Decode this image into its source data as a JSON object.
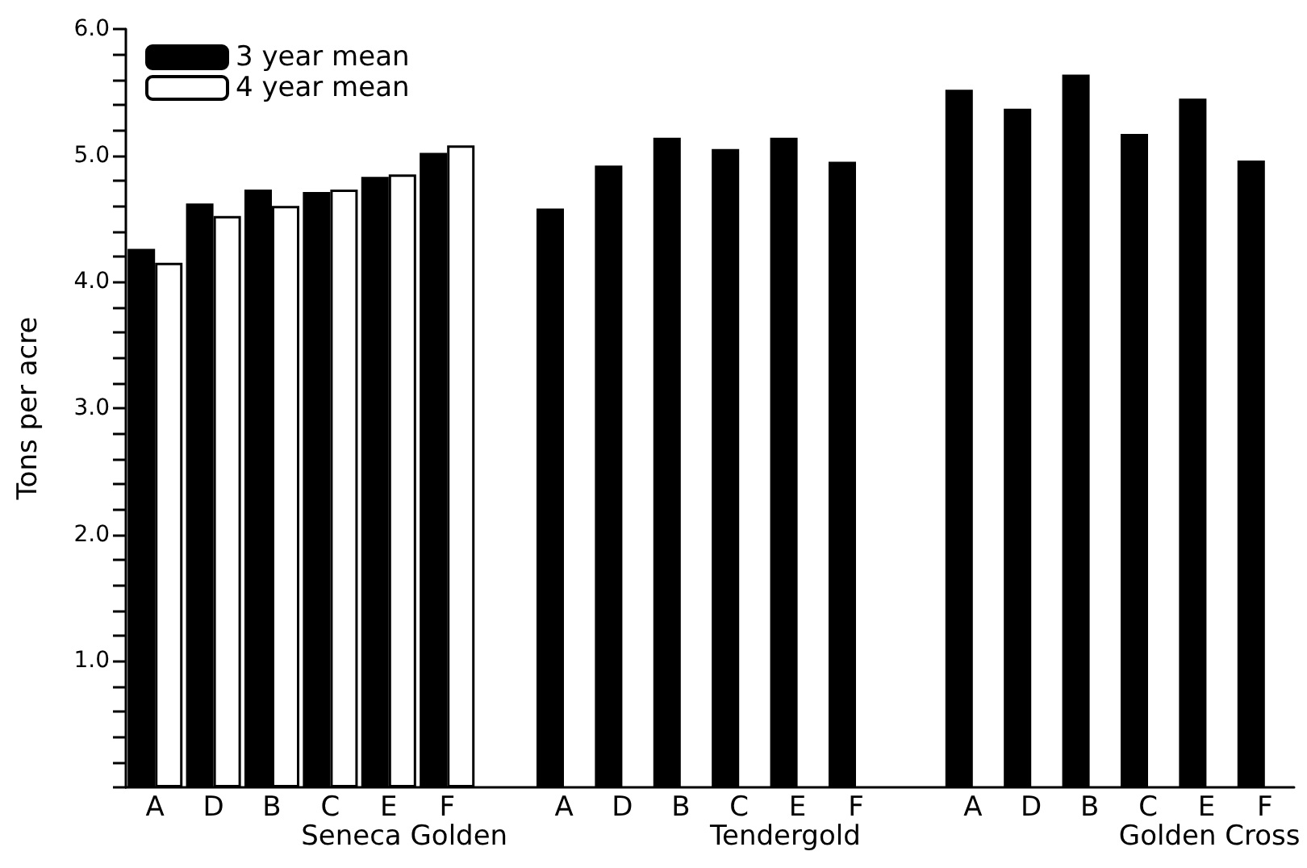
{
  "chart_data": {
    "type": "bar",
    "ylabel": "Tons per acre",
    "categories": [
      "A",
      "D",
      "B",
      "C",
      "E",
      "F",
      null,
      "A",
      "D",
      "B",
      "C",
      "E",
      "F",
      null,
      "A",
      "D",
      "B",
      "C",
      "E",
      "F"
    ],
    "series": [
      {
        "name": "3 year mean",
        "color": "#000000",
        "values": [
          4.26,
          4.62,
          4.73,
          4.71,
          4.83,
          5.02,
          null,
          4.58,
          4.92,
          5.14,
          5.05,
          5.14,
          4.95,
          null,
          5.52,
          5.37,
          5.64,
          5.17,
          5.45,
          4.96
        ]
      },
      {
        "name": "4 year mean",
        "color": "#ffffff",
        "values": [
          4.15,
          4.52,
          4.6,
          4.73,
          4.85,
          5.08,
          null,
          null,
          null,
          null,
          null,
          null,
          null,
          null,
          null,
          null,
          null,
          null,
          null,
          null
        ]
      }
    ],
    "annotations": [
      "Seneca Golden",
      "Tendergold",
      "Golden Cross"
    ],
    "ylim": [
      0,
      6
    ],
    "yticks": [
      {
        "value": 0,
        "label": null
      },
      {
        "value": 0.2,
        "label": null
      },
      {
        "value": 0.4,
        "label": null
      },
      {
        "value": 0.6,
        "label": null
      },
      {
        "value": 0.8,
        "label": null
      },
      {
        "value": 1,
        "label": "1.0"
      },
      {
        "value": 1.2,
        "label": null
      },
      {
        "value": 1.4,
        "label": null
      },
      {
        "value": 1.6,
        "label": null
      },
      {
        "value": 1.8,
        "label": null
      },
      {
        "value": 2,
        "label": "2.0"
      },
      {
        "value": 2.2,
        "label": null
      },
      {
        "value": 2.4,
        "label": null
      },
      {
        "value": 2.6,
        "label": null
      },
      {
        "value": 2.8,
        "label": null
      },
      {
        "value": 3,
        "label": "3.0"
      },
      {
        "value": 3.2,
        "label": null
      },
      {
        "value": 3.4,
        "label": null
      },
      {
        "value": 3.6,
        "label": null
      },
      {
        "value": 3.8,
        "label": null
      },
      {
        "value": 4,
        "label": "4.0"
      },
      {
        "value": 4.2,
        "label": null
      },
      {
        "value": 4.4,
        "label": null
      },
      {
        "value": 4.6,
        "label": null
      },
      {
        "value": 4.8,
        "label": null
      },
      {
        "value": 5,
        "label": "5.0"
      },
      {
        "value": 5.2,
        "label": null
      },
      {
        "value": 5.4,
        "label": null
      },
      {
        "value": 5.6,
        "label": null
      },
      {
        "value": 5.8,
        "label": null
      },
      {
        "value": 6,
        "label": "6.0"
      }
    ],
    "grid": false,
    "legend": "top left"
  }
}
